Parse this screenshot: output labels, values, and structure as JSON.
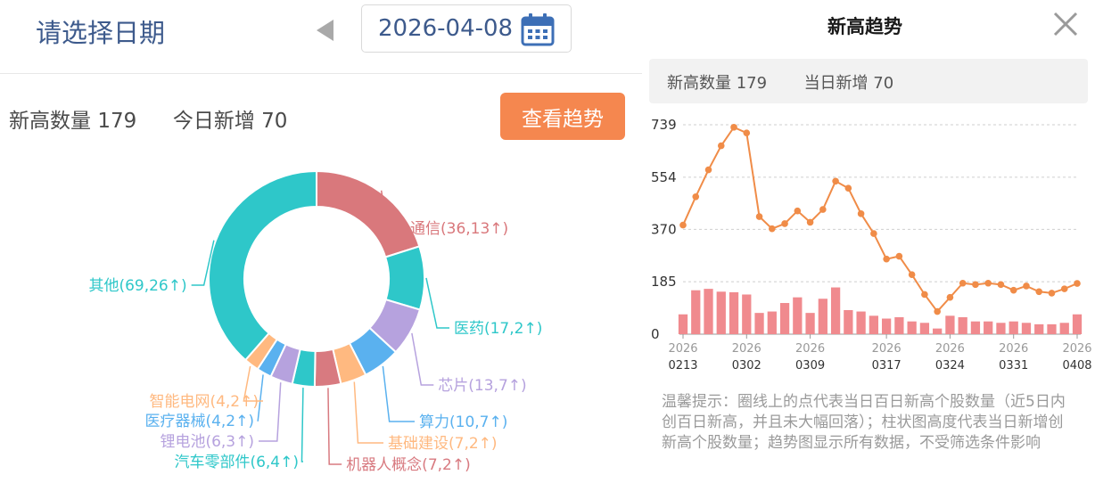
{
  "date_picker": {
    "label": "请选择日期",
    "value": "2026-04-08"
  },
  "summary": {
    "new_high_label": "新高数量",
    "new_high_count": "179",
    "today_added_label": "今日新增",
    "today_added_count": "70",
    "view_trend_button": "查看趋势"
  },
  "donut": {
    "segments": [
      {
        "label": "通信(36,13↑)",
        "value": 36,
        "color": "#d9787c",
        "side": "right"
      },
      {
        "label": "医药(17,2↑)",
        "value": 17,
        "color": "#2ec7c9",
        "side": "right"
      },
      {
        "label": "芯片(13,7↑)",
        "value": 13,
        "color": "#b6a2de",
        "side": "right"
      },
      {
        "label": "算力(10,7↑)",
        "value": 10,
        "color": "#5ab1ef",
        "side": "right"
      },
      {
        "label": "基础建设(7,2↑)",
        "value": 7,
        "color": "#ffb980",
        "side": "right"
      },
      {
        "label": "机器人概念(7,2↑)",
        "value": 7,
        "color": "#d87a80",
        "side": "right"
      },
      {
        "label": "汽车零部件(6,4↑)",
        "value": 6,
        "color": "#2ec7c9",
        "side": "left"
      },
      {
        "label": "锂电池(6,3↑)",
        "value": 6,
        "color": "#b6a2de",
        "side": "left"
      },
      {
        "label": "医疗器械(4,2↑)",
        "value": 4,
        "color": "#5ab1ef",
        "side": "left"
      },
      {
        "label": "智能电网(4,2↑)",
        "value": 4,
        "color": "#ffb980",
        "side": "left"
      },
      {
        "label": "其他(69,26↑)",
        "value": 69,
        "color": "#2ec7c9",
        "side": "left"
      }
    ]
  },
  "trend_modal": {
    "title": "新高趋势",
    "new_high_label": "新高数量",
    "new_high_count": "179",
    "today_added_label": "当日新增",
    "today_added_count": "70",
    "tip": "温馨提示：圈线上的点代表当日百日新高个股数量（近5日内创百日新高，并且未大幅回落）；柱状图高度代表当日新增创新高个股数量；趋势图显示所有数据，不受筛选条件影响"
  },
  "chart_data": {
    "type": "line",
    "yticks": [
      "739",
      "554",
      "370",
      "185",
      "0"
    ],
    "ylim": [
      0,
      739
    ],
    "grid": true,
    "xticks": [
      {
        "top": "2026",
        "bottom": "0213",
        "index": 0
      },
      {
        "top": "2026",
        "bottom": "0302",
        "index": 5
      },
      {
        "top": "2026",
        "bottom": "0309",
        "index": 10
      },
      {
        "top": "2026",
        "bottom": "0317",
        "index": 16
      },
      {
        "top": "2026",
        "bottom": "0324",
        "index": 21
      },
      {
        "top": "2026",
        "bottom": "0331",
        "index": 26
      },
      {
        "top": "2026",
        "bottom": "0408",
        "index": 32
      }
    ],
    "series": [
      {
        "type": "line",
        "color": "#f08c48",
        "values": [
          385,
          485,
          580,
          665,
          730,
          710,
          415,
          372,
          390,
          435,
          395,
          440,
          540,
          515,
          425,
          355,
          265,
          275,
          210,
          140,
          80,
          130,
          180,
          175,
          180,
          175,
          155,
          170,
          150,
          145,
          160,
          179
        ]
      },
      {
        "type": "bar",
        "color": "#f08a8e",
        "values": [
          70,
          155,
          160,
          150,
          148,
          140,
          75,
          80,
          110,
          130,
          75,
          125,
          165,
          85,
          80,
          65,
          55,
          60,
          45,
          40,
          20,
          65,
          60,
          45,
          45,
          40,
          45,
          40,
          35,
          35,
          40,
          70
        ]
      }
    ]
  }
}
